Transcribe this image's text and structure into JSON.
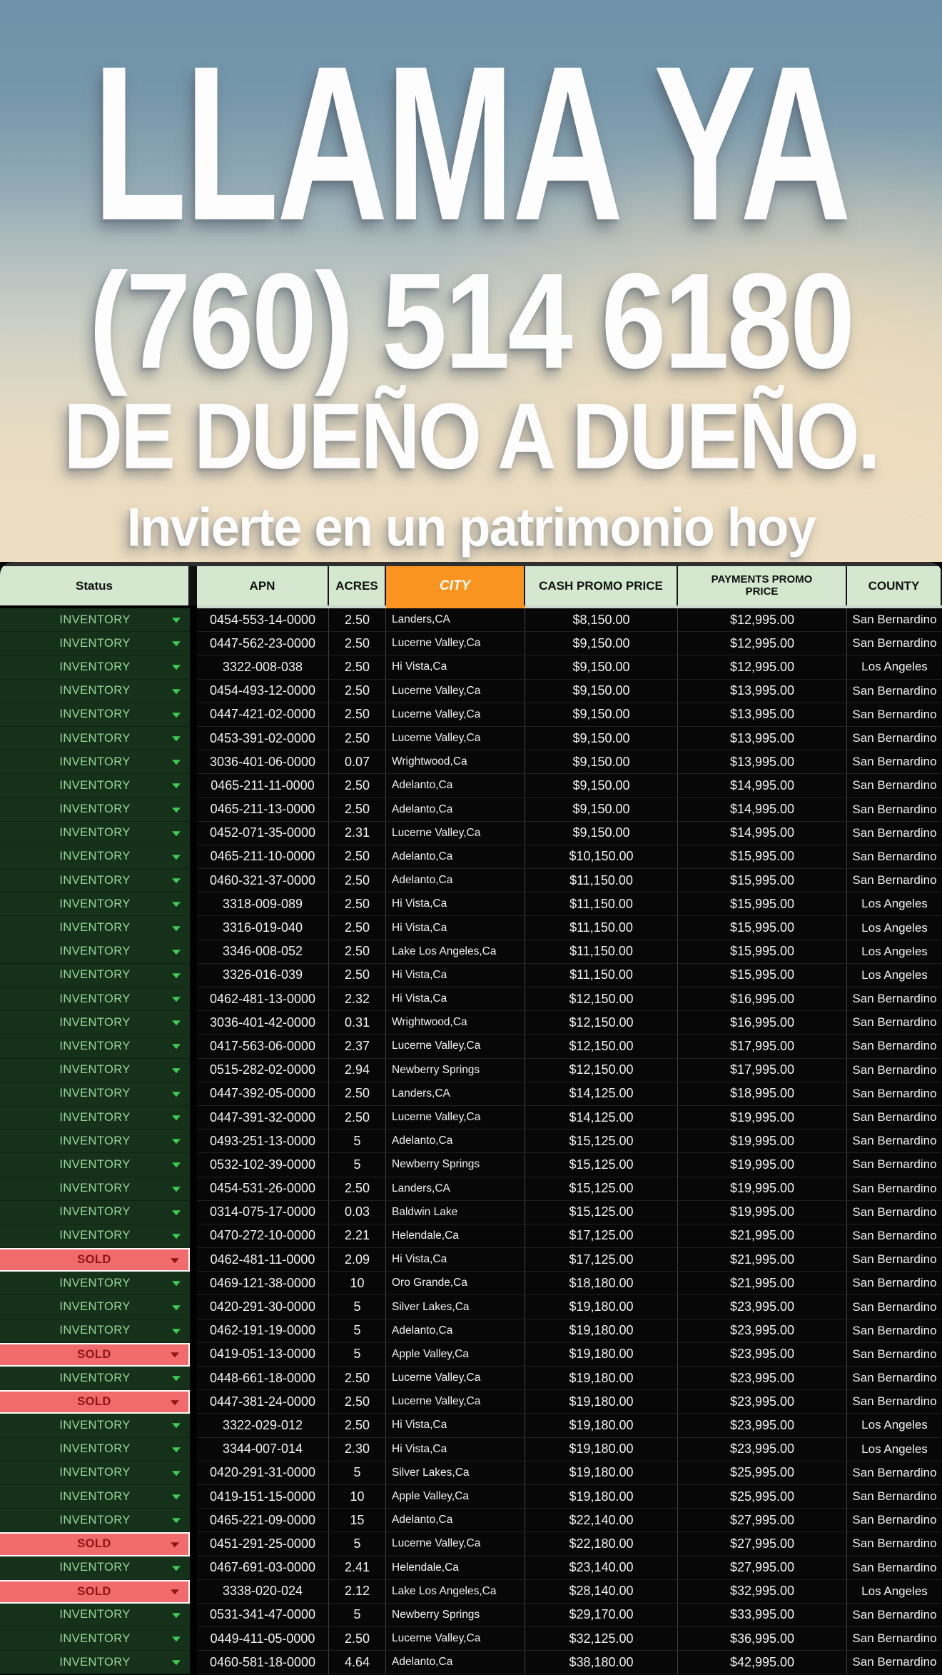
{
  "hero": {
    "title": "LLAMA YA",
    "phone": "(760) 514 6180",
    "subtitle": "DE DUEÑO A DUEÑO.",
    "tagline": "Invierte en un patrimonio hoy"
  },
  "colors": {
    "city_header_orange": "#f8941f",
    "header_green": "#d3e8ce",
    "inventory_cell_bg": "#16311a",
    "inventory_text": "#97d69a",
    "sold_cell_bg": "#f26b6c",
    "sold_text": "#8c1516",
    "row_bg": "#070707",
    "sky_top": "#6d92aa",
    "sky_bottom": "#eedec1"
  },
  "table": {
    "columns": [
      "Status",
      "APN",
      "ACRES",
      "CITY",
      "CASH PROMO PRICE",
      "PAYMENTS PROMO PRICE",
      "COUNTY"
    ],
    "rows": [
      {
        "status": "INVENTORY",
        "apn": "0454-553-14-0000",
        "acres": "2.50",
        "city": "Landers,CA",
        "cash": "$8,150.00",
        "payments": "$12,995.00",
        "county": "San Bernardino"
      },
      {
        "status": "INVENTORY",
        "apn": "0447-562-23-0000",
        "acres": "2.50",
        "city": "Lucerne Valley,Ca",
        "cash": "$9,150.00",
        "payments": "$12,995.00",
        "county": "San Bernardino"
      },
      {
        "status": "INVENTORY",
        "apn": "3322-008-038",
        "acres": "2.50",
        "city": "Hi Vista,Ca",
        "cash": "$9,150.00",
        "payments": "$12,995.00",
        "county": "Los Angeles"
      },
      {
        "status": "INVENTORY",
        "apn": "0454-493-12-0000",
        "acres": "2.50",
        "city": "Lucerne Valley,Ca",
        "cash": "$9,150.00",
        "payments": "$13,995.00",
        "county": "San Bernardino"
      },
      {
        "status": "INVENTORY",
        "apn": "0447-421-02-0000",
        "acres": "2.50",
        "city": "Lucerne Valley,Ca",
        "cash": "$9,150.00",
        "payments": "$13,995.00",
        "county": "San Bernardino"
      },
      {
        "status": "INVENTORY",
        "apn": "0453-391-02-0000",
        "acres": "2.50",
        "city": "Lucerne Valley,Ca",
        "cash": "$9,150.00",
        "payments": "$13,995.00",
        "county": "San Bernardino"
      },
      {
        "status": "INVENTORY",
        "apn": "3036-401-06-0000",
        "acres": "0.07",
        "city": "Wrightwood,Ca",
        "cash": "$9,150.00",
        "payments": "$13,995.00",
        "county": "San Bernardino"
      },
      {
        "status": "INVENTORY",
        "apn": "0465-211-11-0000",
        "acres": "2.50",
        "city": "Adelanto,Ca",
        "cash": "$9,150.00",
        "payments": "$14,995.00",
        "county": "San Bernardino"
      },
      {
        "status": "INVENTORY",
        "apn": "0465-211-13-0000",
        "acres": "2.50",
        "city": "Adelanto,Ca",
        "cash": "$9,150.00",
        "payments": "$14,995.00",
        "county": "San Bernardino"
      },
      {
        "status": "INVENTORY",
        "apn": "0452-071-35-0000",
        "acres": "2.31",
        "city": "Lucerne Valley,Ca",
        "cash": "$9,150.00",
        "payments": "$14,995.00",
        "county": "San Bernardino"
      },
      {
        "status": "INVENTORY",
        "apn": "0465-211-10-0000",
        "acres": "2.50",
        "city": "Adelanto,Ca",
        "cash": "$10,150.00",
        "payments": "$15,995.00",
        "county": "San Bernardino"
      },
      {
        "status": "INVENTORY",
        "apn": "0460-321-37-0000",
        "acres": "2.50",
        "city": "Adelanto,Ca",
        "cash": "$11,150.00",
        "payments": "$15,995.00",
        "county": "San Bernardino"
      },
      {
        "status": "INVENTORY",
        "apn": "3318-009-089",
        "acres": "2.50",
        "city": "Hi Vista,Ca",
        "cash": "$11,150.00",
        "payments": "$15,995.00",
        "county": "Los Angeles"
      },
      {
        "status": "INVENTORY",
        "apn": "3316-019-040",
        "acres": "2.50",
        "city": "Hi Vista,Ca",
        "cash": "$11,150.00",
        "payments": "$15,995.00",
        "county": "Los Angeles"
      },
      {
        "status": "INVENTORY",
        "apn": "3346-008-052",
        "acres": "2.50",
        "city": "Lake Los Angeles,Ca",
        "cash": "$11,150.00",
        "payments": "$15,995.00",
        "county": "Los Angeles"
      },
      {
        "status": "INVENTORY",
        "apn": "3326-016-039",
        "acres": "2.50",
        "city": "Hi Vista,Ca",
        "cash": "$11,150.00",
        "payments": "$15,995.00",
        "county": "Los Angeles"
      },
      {
        "status": "INVENTORY",
        "apn": "0462-481-13-0000",
        "acres": "2.32",
        "city": "Hi Vista,Ca",
        "cash": "$12,150.00",
        "payments": "$16,995.00",
        "county": "San Bernardino"
      },
      {
        "status": "INVENTORY",
        "apn": "3036-401-42-0000",
        "acres": "0.31",
        "city": "Wrightwood,Ca",
        "cash": "$12,150.00",
        "payments": "$16,995.00",
        "county": "San Bernardino"
      },
      {
        "status": "INVENTORY",
        "apn": "0417-563-06-0000",
        "acres": "2.37",
        "city": "Lucerne Valley,Ca",
        "cash": "$12,150.00",
        "payments": "$17,995.00",
        "county": "San Bernardino"
      },
      {
        "status": "INVENTORY",
        "apn": "0515-282-02-0000",
        "acres": "2.94",
        "city": "Newberry Springs",
        "cash": "$12,150.00",
        "payments": "$17,995.00",
        "county": "San Bernardino"
      },
      {
        "status": "INVENTORY",
        "apn": "0447-392-05-0000",
        "acres": "2.50",
        "city": "Landers,CA",
        "cash": "$14,125.00",
        "payments": "$18,995.00",
        "county": "San Bernardino"
      },
      {
        "status": "INVENTORY",
        "apn": "0447-391-32-0000",
        "acres": "2.50",
        "city": "Lucerne Valley,Ca",
        "cash": "$14,125.00",
        "payments": "$19,995.00",
        "county": "San Bernardino"
      },
      {
        "status": "INVENTORY",
        "apn": "0493-251-13-0000",
        "acres": "5",
        "city": "Adelanto,Ca",
        "cash": "$15,125.00",
        "payments": "$19,995.00",
        "county": "San Bernardino"
      },
      {
        "status": "INVENTORY",
        "apn": "0532-102-39-0000",
        "acres": "5",
        "city": "Newberry Springs",
        "cash": "$15,125.00",
        "payments": "$19,995.00",
        "county": "San Bernardino"
      },
      {
        "status": "INVENTORY",
        "apn": "0454-531-26-0000",
        "acres": "2.50",
        "city": "Landers,CA",
        "cash": "$15,125.00",
        "payments": "$19,995.00",
        "county": "San Bernardino"
      },
      {
        "status": "INVENTORY",
        "apn": "0314-075-17-0000",
        "acres": "0.03",
        "city": "Baldwin Lake",
        "cash": "$15,125.00",
        "payments": "$19,995.00",
        "county": "San Bernardino"
      },
      {
        "status": "INVENTORY",
        "apn": "0470-272-10-0000",
        "acres": "2.21",
        "city": "Helendale,Ca",
        "cash": "$17,125.00",
        "payments": "$21,995.00",
        "county": "San Bernardino"
      },
      {
        "status": "SOLD",
        "apn": "0462-481-11-0000",
        "acres": "2.09",
        "city": "Hi Vista,Ca",
        "cash": "$17,125.00",
        "payments": "$21,995.00",
        "county": "San Bernardino"
      },
      {
        "status": "INVENTORY",
        "apn": "0469-121-38-0000",
        "acres": "10",
        "city": "Oro Grande,Ca",
        "cash": "$18,180.00",
        "payments": "$21,995.00",
        "county": "San Bernardino"
      },
      {
        "status": "INVENTORY",
        "apn": "0420-291-30-0000",
        "acres": "5",
        "city": "Silver Lakes,Ca",
        "cash": "$19,180.00",
        "payments": "$23,995.00",
        "county": "San Bernardino"
      },
      {
        "status": "INVENTORY",
        "apn": "0462-191-19-0000",
        "acres": "5",
        "city": "Adelanto,Ca",
        "cash": "$19,180.00",
        "payments": "$23,995.00",
        "county": "San Bernardino"
      },
      {
        "status": "SOLD",
        "apn": "0419-051-13-0000",
        "acres": "5",
        "city": "Apple Valley,Ca",
        "cash": "$19,180.00",
        "payments": "$23,995.00",
        "county": "San Bernardino"
      },
      {
        "status": "INVENTORY",
        "apn": "0448-661-18-0000",
        "acres": "2.50",
        "city": "Lucerne Valley,Ca",
        "cash": "$19,180.00",
        "payments": "$23,995.00",
        "county": "San Bernardino"
      },
      {
        "status": "SOLD",
        "apn": "0447-381-24-0000",
        "acres": "2.50",
        "city": "Lucerne Valley,Ca",
        "cash": "$19,180.00",
        "payments": "$23,995.00",
        "county": "San Bernardino"
      },
      {
        "status": "INVENTORY",
        "apn": "3322-029-012",
        "acres": "2.50",
        "city": "Hi Vista,Ca",
        "cash": "$19,180.00",
        "payments": "$23,995.00",
        "county": "Los Angeles"
      },
      {
        "status": "INVENTORY",
        "apn": "3344-007-014",
        "acres": "2.30",
        "city": "Hi Vista,Ca",
        "cash": "$19,180.00",
        "payments": "$23,995.00",
        "county": "Los Angeles"
      },
      {
        "status": "INVENTORY",
        "apn": "0420-291-31-0000",
        "acres": "5",
        "city": "Silver Lakes,Ca",
        "cash": "$19,180.00",
        "payments": "$25,995.00",
        "county": "San Bernardino"
      },
      {
        "status": "INVENTORY",
        "apn": "0419-151-15-0000",
        "acres": "10",
        "city": "Apple Valley,Ca",
        "cash": "$19,180.00",
        "payments": "$25,995.00",
        "county": "San Bernardino"
      },
      {
        "status": "INVENTORY",
        "apn": "0465-221-09-0000",
        "acres": "15",
        "city": "Adelanto,Ca",
        "cash": "$22,140.00",
        "payments": "$27,995.00",
        "county": "San Bernardino"
      },
      {
        "status": "SOLD",
        "apn": "0451-291-25-0000",
        "acres": "5",
        "city": "Lucerne Valley,Ca",
        "cash": "$22,180.00",
        "payments": "$27,995.00",
        "county": "San Bernardino"
      },
      {
        "status": "INVENTORY",
        "apn": "0467-691-03-0000",
        "acres": "2.41",
        "city": "Helendale,Ca",
        "cash": "$23,140.00",
        "payments": "$27,995.00",
        "county": "San Bernardino"
      },
      {
        "status": "SOLD",
        "apn": "3338-020-024",
        "acres": "2.12",
        "city": "Lake Los Angeles,Ca",
        "cash": "$28,140.00",
        "payments": "$32,995.00",
        "county": "Los Angeles"
      },
      {
        "status": "INVENTORY",
        "apn": "0531-341-47-0000",
        "acres": "5",
        "city": "Newberry Springs",
        "cash": "$29,170.00",
        "payments": "$33,995.00",
        "county": "San Bernardino"
      },
      {
        "status": "INVENTORY",
        "apn": "0449-411-05-0000",
        "acres": "2.50",
        "city": "Lucerne Valley,Ca",
        "cash": "$32,125.00",
        "payments": "$36,995.00",
        "county": "San Bernardino"
      },
      {
        "status": "INVENTORY",
        "apn": "0460-581-18-0000",
        "acres": "4.64",
        "city": "Adelanto,Ca",
        "cash": "$38,180.00",
        "payments": "$42,995.00",
        "county": "San Bernardino"
      }
    ]
  }
}
